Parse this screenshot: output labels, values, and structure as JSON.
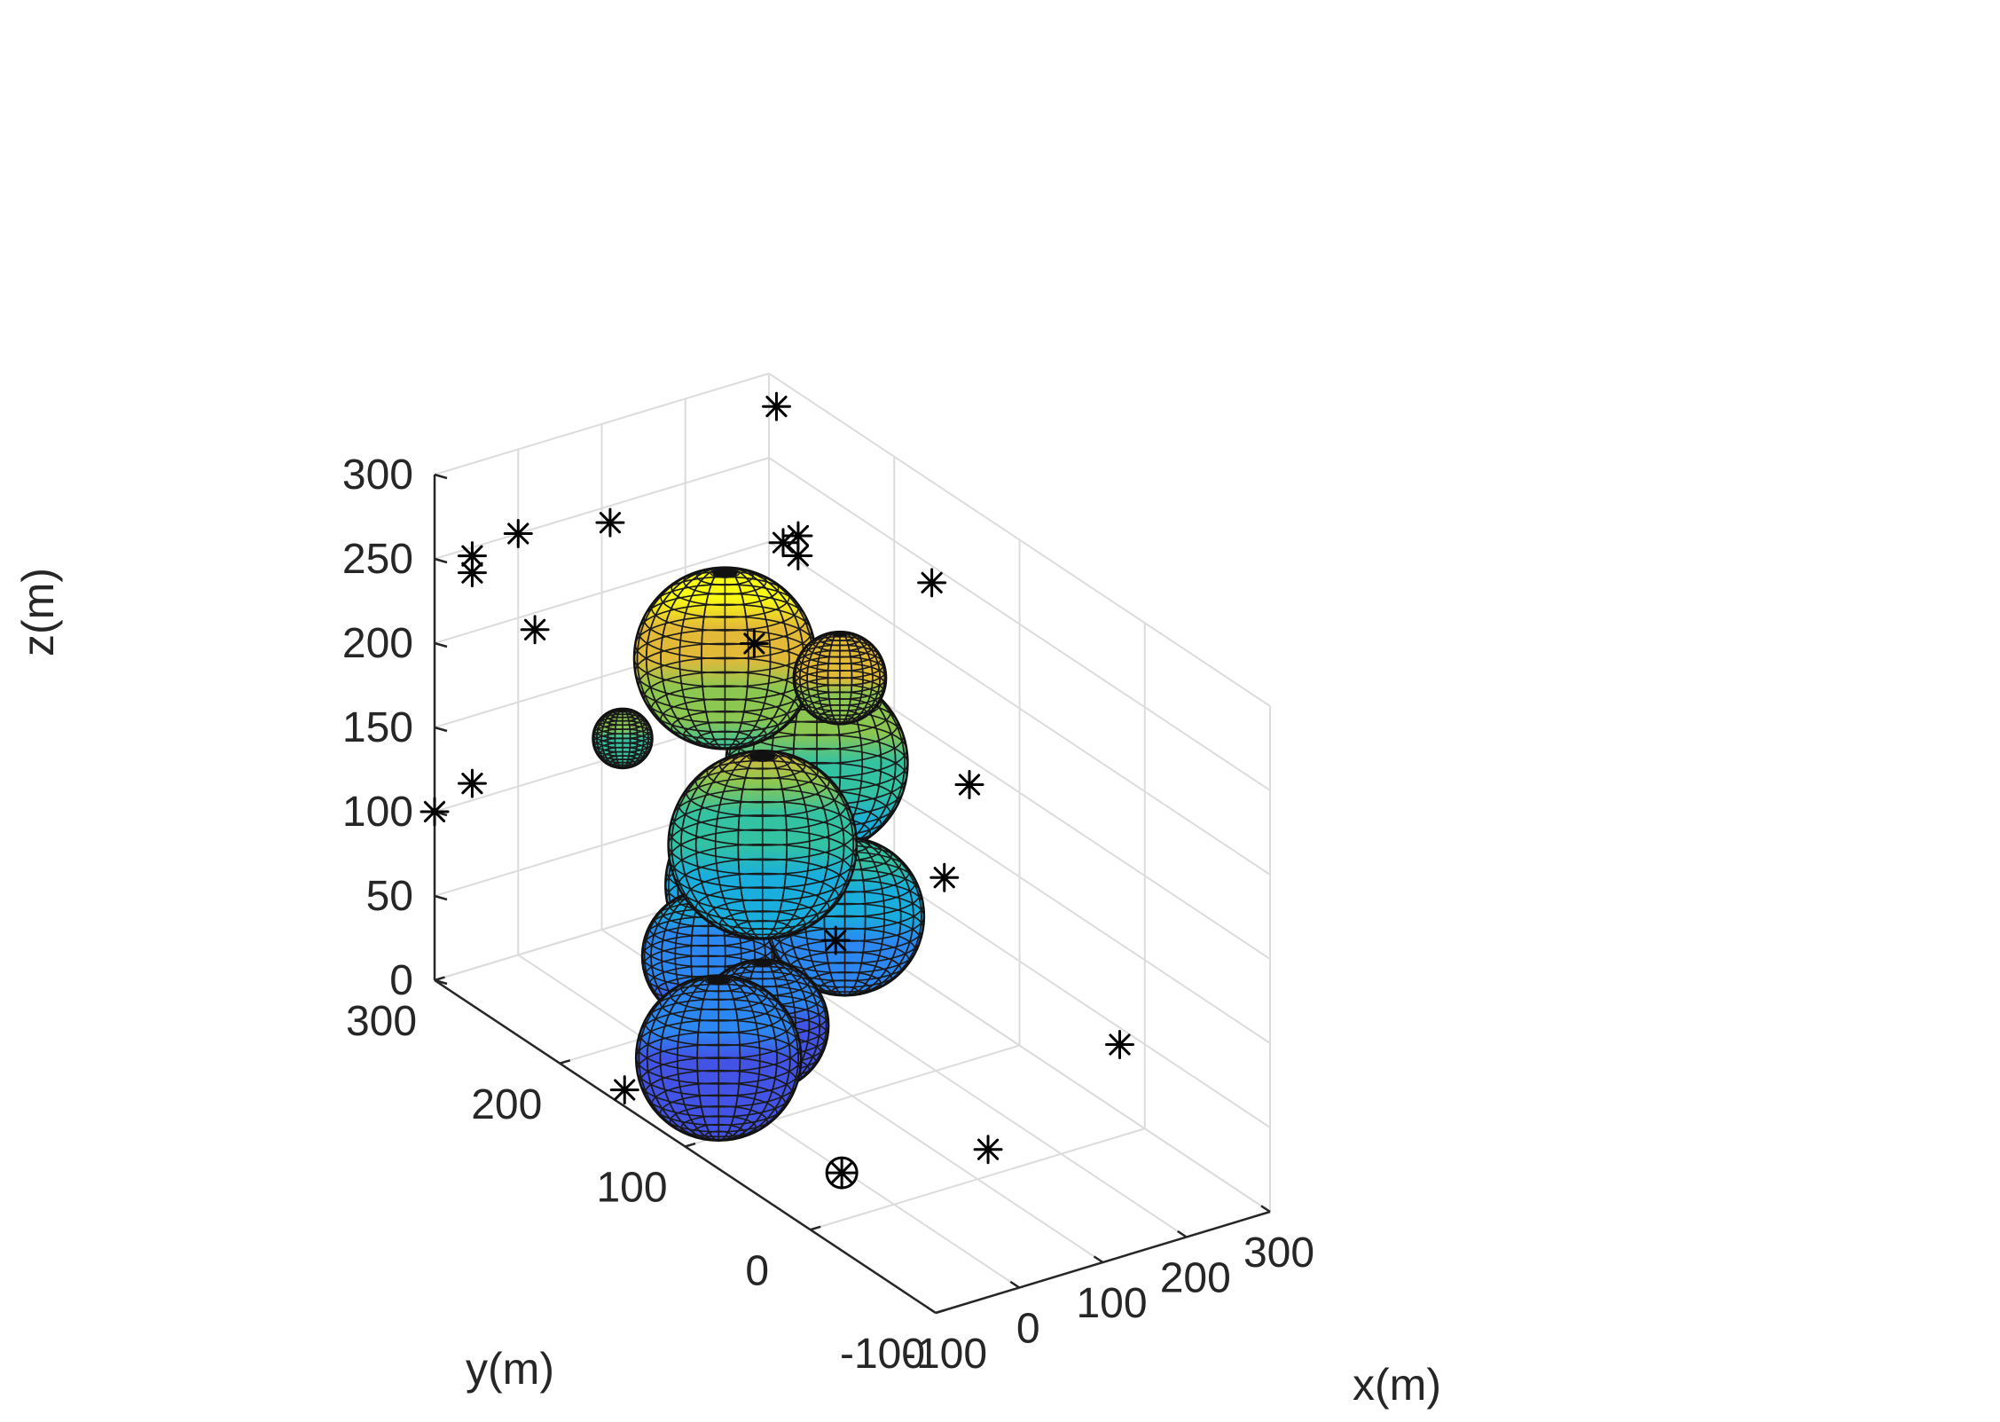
{
  "chart_data": {
    "type": "scatter3d",
    "xlabel": "x(m)",
    "ylabel": "y(m)",
    "zlabel": "z(m)",
    "xlim": [
      -100,
      300
    ],
    "ylim": [
      -100,
      300
    ],
    "zlim": [
      0,
      300
    ],
    "x_ticks": [
      "-100",
      "0",
      "100",
      "200",
      "300"
    ],
    "y_ticks": [
      "-100",
      "0",
      "100",
      "200",
      "300"
    ],
    "z_ticks": [
      "0",
      "50",
      "100",
      "150",
      "200",
      "250",
      "300"
    ],
    "grid": true,
    "colormap": "parula",
    "colors": {
      "low": "#3e4fd8",
      "mid": "#3db9b4",
      "high": "#f9e431"
    },
    "spheres": [
      {
        "center": [
          105,
          180,
          85
        ],
        "radius": 55
      },
      {
        "center": [
          118,
          118,
          95
        ],
        "radius": 48
      },
      {
        "center": [
          -15,
          130,
          25
        ],
        "radius": 50
      },
      {
        "center": [
          30,
          125,
          40
        ],
        "radius": 40
      },
      {
        "center": [
          40,
          175,
          55
        ],
        "radius": 40
      },
      {
        "center": [
          120,
          215,
          200
        ],
        "radius": 55
      },
      {
        "center": [
          170,
          175,
          150
        ],
        "radius": 55
      },
      {
        "center": [
          190,
          170,
          200
        ],
        "radius": 28
      },
      {
        "center": [
          45,
          135,
          140
        ],
        "radius": 57
      },
      {
        "center": [
          20,
          230,
          160
        ],
        "radius": 18
      }
    ],
    "points": [
      [
        282,
        282,
        292
      ],
      [
        110,
        300,
        240
      ],
      [
        0,
        300,
        250
      ],
      [
        20,
        300,
        190
      ],
      [
        140,
        170,
        280
      ],
      [
        110,
        185,
        225
      ],
      [
        -100,
        300,
        100
      ],
      [
        -55,
        300,
        245
      ],
      [
        -55,
        300,
        235
      ],
      [
        -55,
        300,
        110
      ],
      [
        290,
        282,
        210
      ],
      [
        290,
        270,
        220
      ],
      [
        300,
        170,
        240
      ],
      [
        300,
        140,
        135
      ],
      [
        300,
        160,
        70
      ],
      [
        300,
        20,
        40
      ],
      [
        -90,
        155,
        5
      ],
      [
        135,
        15,
        5
      ],
      [
        185,
        170,
        45
      ],
      [
        -10,
        35,
        3
      ]
    ],
    "start_point": [
      -10,
      35,
      3
    ]
  }
}
